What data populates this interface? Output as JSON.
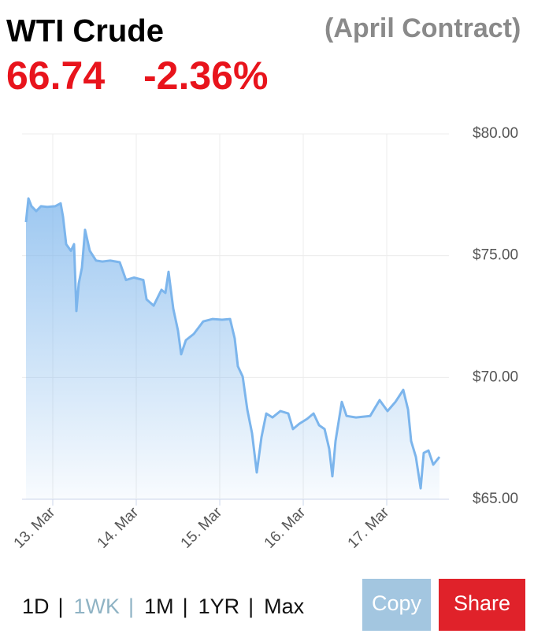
{
  "header": {
    "title": "WTI Crude",
    "subtitle": "(April Contract)",
    "price": "66.74",
    "change": "-2.36%"
  },
  "chart_data": {
    "type": "area",
    "color": "#7cb5ec",
    "x": [
      12.679,
      12.708,
      12.745,
      12.802,
      12.858,
      12.934,
      13.028,
      13.094,
      13.123,
      13.16,
      13.217,
      13.255,
      13.283,
      13.311,
      13.349,
      13.387,
      13.443,
      13.519,
      13.594,
      13.689,
      13.802,
      13.877,
      13.972,
      14.085,
      14.123,
      14.208,
      14.302,
      14.349,
      14.387,
      14.443,
      14.5,
      14.538,
      14.594,
      14.689,
      14.802,
      14.915,
      15.028,
      15.123,
      15.179,
      15.217,
      15.274,
      15.33,
      15.387,
      15.443,
      15.5,
      15.557,
      15.632,
      15.726,
      15.821,
      15.877,
      15.953,
      16.047,
      16.123,
      16.189,
      16.255,
      16.311,
      16.349,
      16.387,
      16.462,
      16.519,
      16.632,
      16.802,
      16.915,
      17.009,
      17.104,
      17.198,
      17.255,
      17.292,
      17.349,
      17.406,
      17.443,
      17.5,
      17.557,
      17.632
    ],
    "values": [
      76.38,
      77.35,
      77.03,
      76.83,
      77.03,
      77.0,
      77.03,
      77.15,
      76.6,
      75.47,
      75.2,
      75.47,
      72.73,
      73.86,
      74.5,
      76.06,
      75.2,
      74.8,
      74.76,
      74.8,
      74.73,
      74.0,
      74.1,
      74.0,
      73.2,
      72.95,
      73.6,
      73.47,
      74.34,
      72.82,
      71.92,
      70.95,
      71.53,
      71.79,
      72.3,
      72.4,
      72.37,
      72.4,
      71.6,
      70.46,
      70.04,
      68.68,
      67.71,
      66.1,
      67.55,
      68.52,
      68.36,
      68.62,
      68.52,
      67.88,
      68.1,
      68.3,
      68.52,
      68.04,
      67.88,
      67.07,
      65.94,
      67.39,
      69.0,
      68.42,
      68.36,
      68.42,
      69.07,
      68.62,
      69.0,
      69.49,
      68.68,
      67.39,
      66.74,
      65.45,
      66.9,
      67.0,
      66.42,
      66.74
    ],
    "xlim": [
      12.632,
      17.745
    ],
    "xticks": [
      {
        "value": 13,
        "label": "13. Mar"
      },
      {
        "value": 14,
        "label": "14. Mar"
      },
      {
        "value": 15,
        "label": "15. Mar"
      },
      {
        "value": 16,
        "label": "16. Mar"
      },
      {
        "value": 17,
        "label": "17. Mar"
      }
    ],
    "ylim": [
      65,
      80
    ],
    "yticks": [
      {
        "value": 65,
        "label": "$65.00"
      },
      {
        "value": 70,
        "label": "$70.00"
      },
      {
        "value": 75,
        "label": "$75.00"
      },
      {
        "value": 80,
        "label": "$80.00"
      }
    ],
    "grid": true
  },
  "controls": {
    "ranges": [
      "1D",
      "1WK",
      "1M",
      "1YR",
      "Max"
    ],
    "separator": "|",
    "active": "1WK",
    "copy": "Copy",
    "share": "Share"
  }
}
